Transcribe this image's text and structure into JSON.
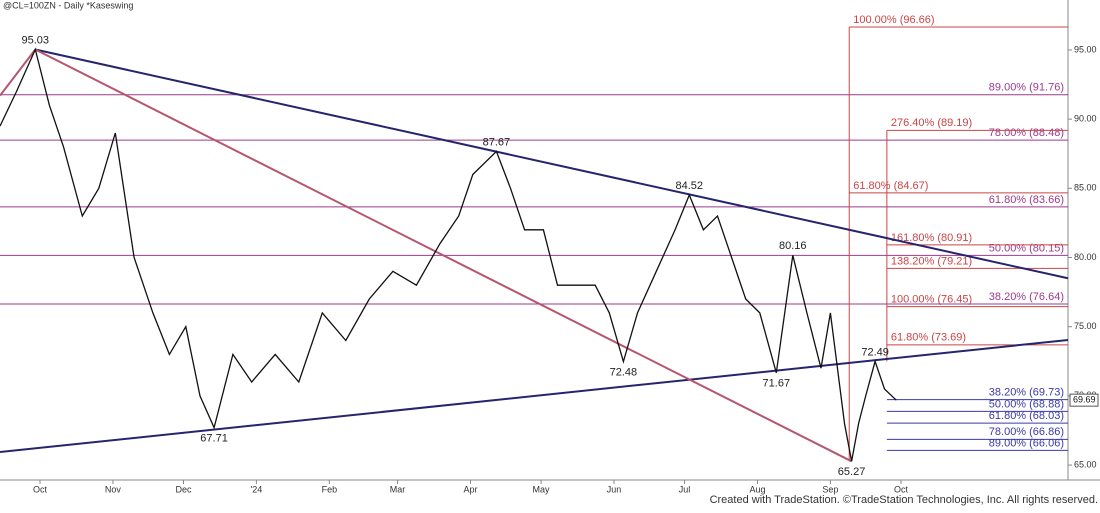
{
  "chart_data": {
    "type": "line",
    "title": "@CL=100ZN - Daily *Kaseswing",
    "footer": "Created with TradeStation. ©TradeStation Technologies, Inc. All rights reserved.",
    "color": "#111111",
    "x": [
      13,
      20,
      28,
      34,
      40,
      48,
      55,
      62,
      70,
      78,
      85,
      92,
      98,
      104,
      112,
      120,
      130,
      140,
      150,
      160,
      170,
      180,
      190,
      200,
      208,
      214,
      224,
      230,
      236,
      244,
      250,
      258,
      266,
      272,
      278,
      284,
      292,
      300,
      306,
      312,
      318,
      324,
      330,
      336,
      343,
      350,
      356,
      362,
      366,
      372,
      375,
      378,
      381,
      385,
      389,
      394
    ],
    "values": [
      89.5,
      92,
      95.03,
      91,
      88,
      83,
      85,
      89,
      80,
      76,
      73,
      75,
      70,
      67.71,
      73,
      71,
      73,
      71,
      76,
      74,
      77,
      79,
      78,
      81,
      83,
      86,
      87.67,
      85,
      82,
      82,
      78,
      78,
      78,
      76,
      72.48,
      76,
      79,
      82,
      84.52,
      82,
      83,
      80,
      77,
      76,
      71.67,
      80.16,
      76,
      72,
      76,
      68,
      65.27,
      68,
      70,
      72.49,
      70.5,
      69.69
    ],
    "xlim": [
      13,
      467
    ],
    "xticks": [
      {
        "value": 30,
        "label": "Oct"
      },
      {
        "value": 61,
        "label": "Nov"
      },
      {
        "value": 91,
        "label": "Dec"
      },
      {
        "value": 122,
        "label": "'24"
      },
      {
        "value": 153,
        "label": "Feb"
      },
      {
        "value": 182,
        "label": "Mar"
      },
      {
        "value": 213,
        "label": "Apr"
      },
      {
        "value": 243,
        "label": "May"
      },
      {
        "value": 274,
        "label": "Jun"
      },
      {
        "value": 304,
        "label": "Jul"
      },
      {
        "value": 335,
        "label": "Aug"
      },
      {
        "value": 366,
        "label": "Sep"
      },
      {
        "value": 396,
        "label": "Oct"
      }
    ],
    "ylim": [
      63.92,
      98.61
    ],
    "yticks": [
      {
        "value": 65,
        "label": "65.00"
      },
      {
        "value": 70,
        "label": "70.00"
      },
      {
        "value": 75,
        "label": "75.00"
      },
      {
        "value": 80,
        "label": "80.00"
      },
      {
        "value": 85,
        "label": "85.00"
      },
      {
        "value": 90,
        "label": "90.00"
      },
      {
        "value": 95,
        "label": "95.00"
      }
    ],
    "last_price": 69.69,
    "trendlines": [
      {
        "color": "#25256e",
        "x": [
          28,
          467
        ],
        "values": [
          95.03,
          78.5
        ]
      },
      {
        "color": "#25256e",
        "x": [
          13,
          467
        ],
        "values": [
          65.94,
          74.04
        ]
      },
      {
        "color": "#b5566e",
        "x": [
          28,
          375
        ],
        "values": [
          95.03,
          65.27
        ]
      },
      {
        "color": "#b5566e",
        "x": [
          13,
          28
        ],
        "values": [
          91.7,
          95.03
        ]
      }
    ],
    "verticals": [
      {
        "color": "#cc4444",
        "x": 374,
        "values": [
          65.27,
          96.66
        ]
      },
      {
        "color": "#cc4444",
        "x": 390,
        "values": [
          72.49,
          89.19
        ]
      }
    ],
    "levels": [
      {
        "label": "89.00% (91.76)",
        "value": 91.76,
        "start": 13,
        "color": "#9a3b8c",
        "label_align": "right"
      },
      {
        "label": "78.00% (88.48)",
        "value": 88.48,
        "start": 13,
        "color": "#9a3b8c",
        "label_align": "right"
      },
      {
        "label": "61.80% (83.66)",
        "value": 83.66,
        "start": 13,
        "color": "#9a3b8c",
        "label_align": "right"
      },
      {
        "label": "50.00% (80.15)",
        "value": 80.15,
        "start": 13,
        "color": "#9a3b8c",
        "label_align": "right"
      },
      {
        "label": "38.20% (76.64)",
        "value": 76.64,
        "start": 13,
        "color": "#9a3b8c",
        "label_align": "right"
      },
      {
        "label": "100.00% (96.66)",
        "value": 96.66,
        "start": 374,
        "color": "#cc4444",
        "label_align": "left"
      },
      {
        "label": "276.40% (89.19)",
        "value": 89.19,
        "start": 390,
        "color": "#cc4444",
        "label_align": "left"
      },
      {
        "label": "61.80% (84.67)",
        "value": 84.67,
        "start": 374,
        "color": "#cc4444",
        "label_align": "left"
      },
      {
        "label": "161.80% (80.91)",
        "value": 80.91,
        "start": 390,
        "color": "#cc4444",
        "label_align": "left"
      },
      {
        "label": "138.20% (79.21)",
        "value": 79.21,
        "start": 390,
        "color": "#cc4444",
        "label_align": "left"
      },
      {
        "label": "100.00% (76.45)",
        "value": 76.45,
        "start": 390,
        "color": "#cc4444",
        "label_align": "left"
      },
      {
        "label": "61.80% (73.69)",
        "value": 73.69,
        "start": 390,
        "color": "#cc4444",
        "label_align": "left"
      },
      {
        "label": "38.20% (69.73)",
        "value": 69.73,
        "start": 390,
        "color": "#3a3aa8",
        "label_align": "right"
      },
      {
        "label": "50.00% (68.88)",
        "value": 68.88,
        "start": 390,
        "color": "#3a3aa8",
        "label_align": "right"
      },
      {
        "label": "61.80% (68.03)",
        "value": 68.03,
        "start": 390,
        "color": "#3a3aa8",
        "label_align": "right"
      },
      {
        "label": "78.00% (66.86)",
        "value": 66.86,
        "start": 390,
        "color": "#3a3aa8",
        "label_align": "right"
      },
      {
        "label": "89.00% (66.06)",
        "value": 66.06,
        "start": 390,
        "color": "#3a3aa8",
        "label_align": "right"
      }
    ],
    "swings": [
      {
        "value": 95.03,
        "x": 28,
        "position": "above"
      },
      {
        "value": 67.71,
        "x": 104,
        "position": "below"
      },
      {
        "value": 87.67,
        "x": 224,
        "position": "above"
      },
      {
        "value": 72.48,
        "x": 278,
        "position": "below"
      },
      {
        "value": 84.52,
        "x": 306,
        "position": "above"
      },
      {
        "value": 71.67,
        "x": 343,
        "position": "below"
      },
      {
        "value": 80.16,
        "x": 350,
        "position": "above"
      },
      {
        "value": 65.27,
        "x": 375,
        "position": "below"
      },
      {
        "value": 72.49,
        "x": 385,
        "position": "above"
      }
    ]
  }
}
